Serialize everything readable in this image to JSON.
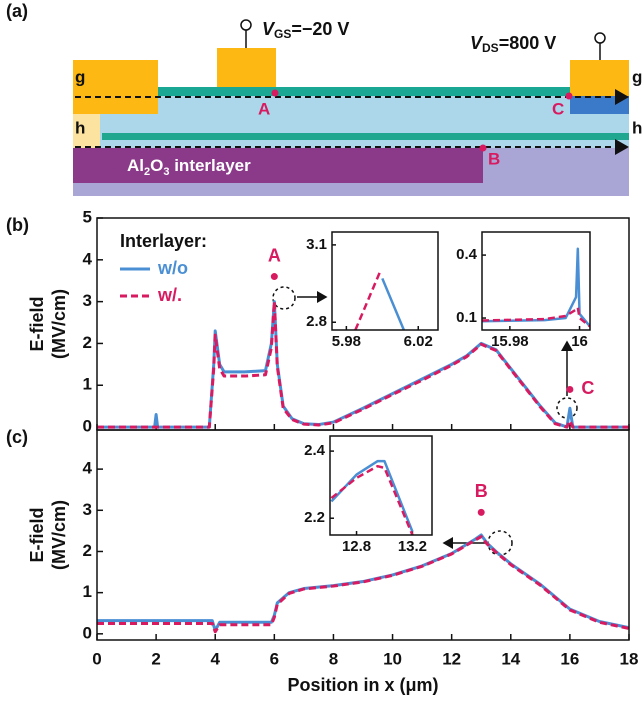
{
  "schematic": {
    "panel_label": "(a)",
    "vgs": {
      "symbol": "V",
      "sub": "GS",
      "rest": "=−20 V"
    },
    "vds": {
      "symbol": "V",
      "sub": "DS",
      "rest": "=800 V"
    },
    "cut_g_left": "g",
    "cut_g_right": "g",
    "cut_h_left": "h",
    "cut_h_right": "h",
    "point_a": "A",
    "point_c": "C",
    "point_b": "B",
    "interlayer": {
      "p1": "Al",
      "p2": "2",
      "p3": "O",
      "p4": "3",
      "p5": " interlayer"
    }
  },
  "chart_data": [
    {
      "type": "line",
      "panel_label": "(b)",
      "ylabel": "E-field",
      "yunit": "(MV/cm)",
      "xlim": [
        0,
        18
      ],
      "ylim": [
        -0.07,
        5
      ],
      "xticks": [
        0,
        2,
        4,
        6,
        8,
        10,
        12,
        14,
        16,
        18
      ],
      "yticks": [
        0,
        1,
        2,
        3,
        4,
        5
      ],
      "legend_title": "Interlayer:",
      "legend": "upper left",
      "x": [
        0,
        1.95,
        2,
        2.05,
        3.8,
        3.95,
        4.0,
        4.15,
        4.3,
        5,
        5.7,
        5.9,
        6.0,
        6.1,
        6.3,
        6.6,
        7,
        7.5,
        8,
        9,
        10,
        11,
        12,
        12.5,
        13,
        13.5,
        14,
        14.5,
        15,
        15.5,
        15.9,
        16,
        16.1,
        16.5,
        18
      ],
      "series": [
        {
          "name": "w/o",
          "color": "#4a8fd4",
          "linestyle": "solid",
          "values": [
            0,
            0,
            0.3,
            0,
            0,
            1.5,
            2.3,
            1.5,
            1.32,
            1.32,
            1.35,
            2.0,
            3.0,
            1.5,
            0.5,
            0.2,
            0.08,
            0.06,
            0.12,
            0.45,
            0.8,
            1.15,
            1.5,
            1.7,
            2.0,
            1.85,
            1.4,
            0.95,
            0.5,
            0.1,
            0,
            0.45,
            0,
            0,
            0
          ]
        },
        {
          "name": "w/.",
          "color": "#d81b60",
          "linestyle": "dashed",
          "values": [
            0,
            0,
            0,
            0,
            0,
            1.4,
            2.2,
            1.4,
            1.22,
            1.22,
            1.25,
            1.9,
            3.0,
            1.45,
            0.45,
            0.18,
            0.07,
            0.05,
            0.1,
            0.43,
            0.78,
            1.12,
            1.48,
            1.68,
            1.98,
            1.83,
            1.38,
            0.93,
            0.48,
            0.08,
            0,
            0.15,
            0,
            0,
            0
          ]
        }
      ],
      "annotation_color": "#d81b60",
      "annotations": [
        {
          "text": "A",
          "x": 6,
          "y": 3.6,
          "position": "above"
        },
        {
          "text": "C",
          "x": 16,
          "y": 0.9,
          "position": "right"
        }
      ],
      "insets": [
        {
          "xlim": [
            5.972,
            6.031
          ],
          "ylim": [
            2.77,
            3.15
          ],
          "xticks": [
            5.98,
            6.02
          ],
          "yticks": [
            2.8,
            3.1
          ],
          "x": [
            5.985,
            5.999,
            6.0,
            6.012
          ],
          "series": [
            {
              "color": "#4a8fd4",
              "linestyle": "solid",
              "values": [
                2.77,
                null,
                2.97,
                2.77
              ]
            },
            {
              "color": "#d81b60",
              "linestyle": "dashed",
              "values": [
                2.77,
                3.0,
                null,
                2.77
              ]
            }
          ]
        },
        {
          "xlim": [
            15.972,
            16.003
          ],
          "ylim": [
            0.043,
            0.51
          ],
          "xticks": [
            15.98,
            16
          ],
          "yticks": [
            0.1,
            0.4
          ],
          "x": [
            15.972,
            15.99,
            15.996,
            15.999,
            15.9995,
            16.0,
            16.003
          ],
          "series": [
            {
              "color": "#4a8fd4",
              "linestyle": "solid",
              "values": [
                0.085,
                0.09,
                0.1,
                0.2,
                0.43,
                0.12,
                0.06
              ]
            },
            {
              "color": "#d81b60",
              "linestyle": "dashed",
              "values": [
                0.088,
                0.095,
                0.11,
                0.14,
                0.15,
                0.1,
                0.06
              ]
            }
          ]
        }
      ]
    },
    {
      "type": "line",
      "panel_label": "(c)",
      "ylabel": "E-field",
      "yunit": "(MV/cm)",
      "xlabel": "Position in x (μm)",
      "xlim": [
        0,
        18
      ],
      "ylim": [
        -0.15,
        4.95
      ],
      "xticks": [
        0,
        2,
        4,
        6,
        8,
        10,
        12,
        14,
        16,
        18
      ],
      "yticks": [
        0,
        1,
        2,
        3,
        4
      ],
      "x": [
        0,
        3.9,
        4,
        4.15,
        5.9,
        6,
        6.1,
        6.5,
        7,
        8,
        9,
        10,
        11,
        12,
        12.8,
        13,
        13.2,
        13.5,
        14,
        15,
        16,
        17,
        18
      ],
      "series": [
        {
          "color": "#4a8fd4",
          "linestyle": "solid",
          "values": [
            0.32,
            0.32,
            0.08,
            0.28,
            0.28,
            0.45,
            0.75,
            1.0,
            1.1,
            1.17,
            1.27,
            1.43,
            1.65,
            1.95,
            2.3,
            2.4,
            2.2,
            2.0,
            1.7,
            1.2,
            0.6,
            0.3,
            0.15
          ]
        },
        {
          "color": "#d81b60",
          "linestyle": "dashed",
          "values": [
            0.25,
            0.25,
            0.05,
            0.22,
            0.22,
            0.4,
            0.72,
            0.98,
            1.09,
            1.16,
            1.26,
            1.42,
            1.64,
            1.94,
            2.28,
            2.36,
            2.18,
            1.98,
            1.68,
            1.18,
            0.58,
            0.28,
            0.13
          ]
        }
      ],
      "annotation_color": "#d81b60",
      "annotations": [
        {
          "text": "B",
          "x": 13,
          "y": 2.95,
          "position": "above"
        }
      ],
      "insets": [
        {
          "xlim": [
            12.61,
            13.34
          ],
          "ylim": [
            2.15,
            2.445
          ],
          "xticks": [
            12.8,
            13.2
          ],
          "yticks": [
            2.2,
            2.4
          ],
          "x": [
            12.62,
            12.8,
            12.95,
            13.0,
            13.2
          ],
          "series": [
            {
              "color": "#4a8fd4",
              "linestyle": "solid",
              "values": [
                2.25,
                2.33,
                2.37,
                2.37,
                2.16
              ]
            },
            {
              "color": "#d81b60",
              "linestyle": "dashed",
              "values": [
                2.26,
                2.32,
                2.355,
                2.35,
                2.15
              ]
            }
          ]
        }
      ]
    }
  ]
}
